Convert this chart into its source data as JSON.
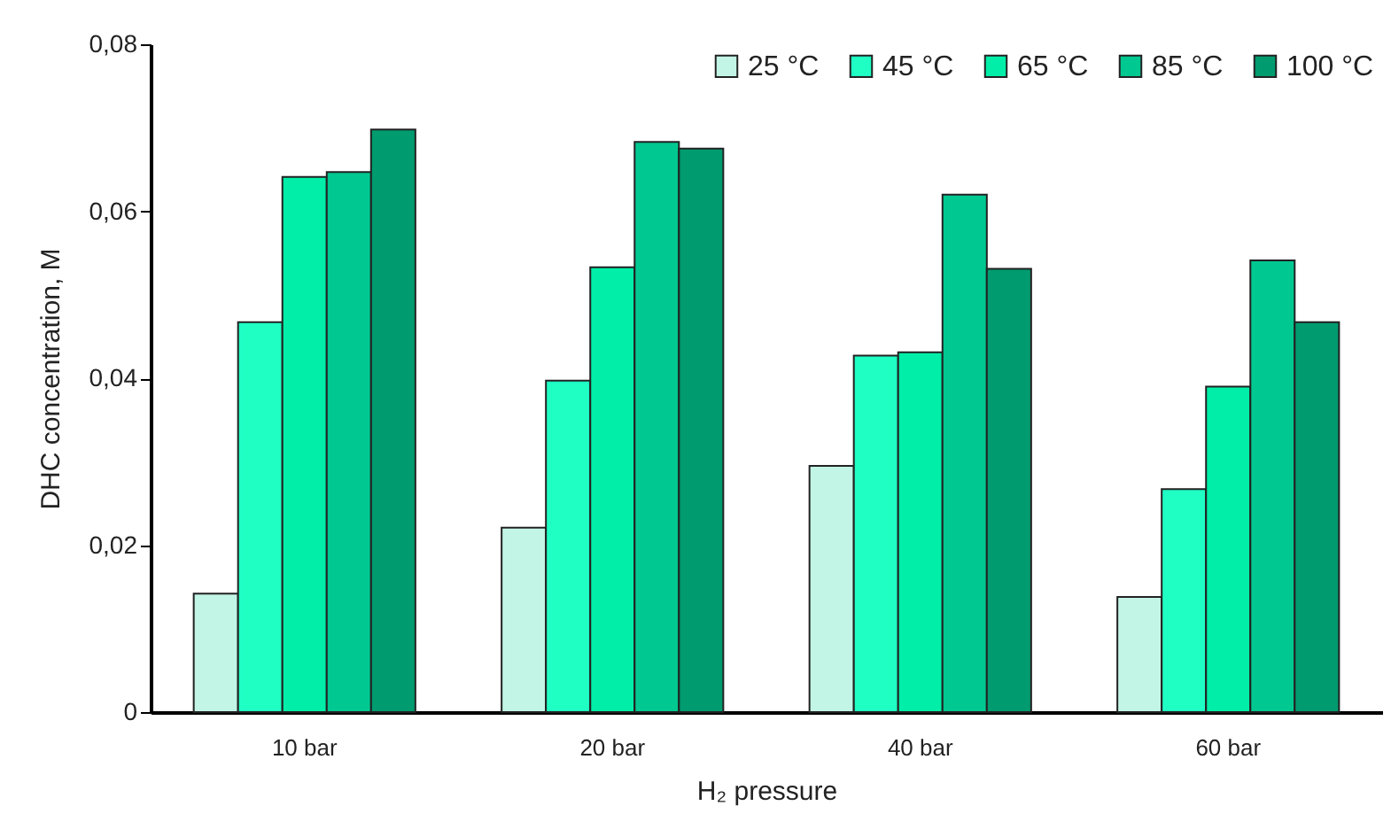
{
  "chart_data": {
    "type": "bar",
    "xlabel": "H₂ pressure",
    "ylabel": "DHC concentration, M",
    "categories": [
      "10 bar",
      "20 bar",
      "40 bar",
      "60 bar"
    ],
    "series": [
      {
        "name": "25 °C",
        "color": "#c2f5e6",
        "values": [
          0.0142,
          0.0221,
          0.0295,
          0.0138
        ]
      },
      {
        "name": "45 °C",
        "color": "#1fffc4",
        "values": [
          0.0467,
          0.0397,
          0.0427,
          0.0267
        ]
      },
      {
        "name": "65 °C",
        "color": "#00eea8",
        "values": [
          0.0641,
          0.0533,
          0.0431,
          0.039
        ]
      },
      {
        "name": "85 °C",
        "color": "#00c891",
        "values": [
          0.0647,
          0.0683,
          0.062,
          0.0541
        ]
      },
      {
        "name": "100 °C",
        "color": "#009b6f",
        "values": [
          0.0698,
          0.0675,
          0.0531,
          0.0467
        ]
      }
    ],
    "ylim": [
      0,
      0.08
    ],
    "yticks": [
      0,
      {
        "value": 0.02,
        "label": "0,02"
      },
      {
        "value": 0.04,
        "label": "0,04"
      },
      {
        "value": 0.06,
        "label": "0,06"
      },
      {
        "value": 0.08,
        "label": "0,08"
      }
    ],
    "legend": "top right",
    "grid": false
  }
}
